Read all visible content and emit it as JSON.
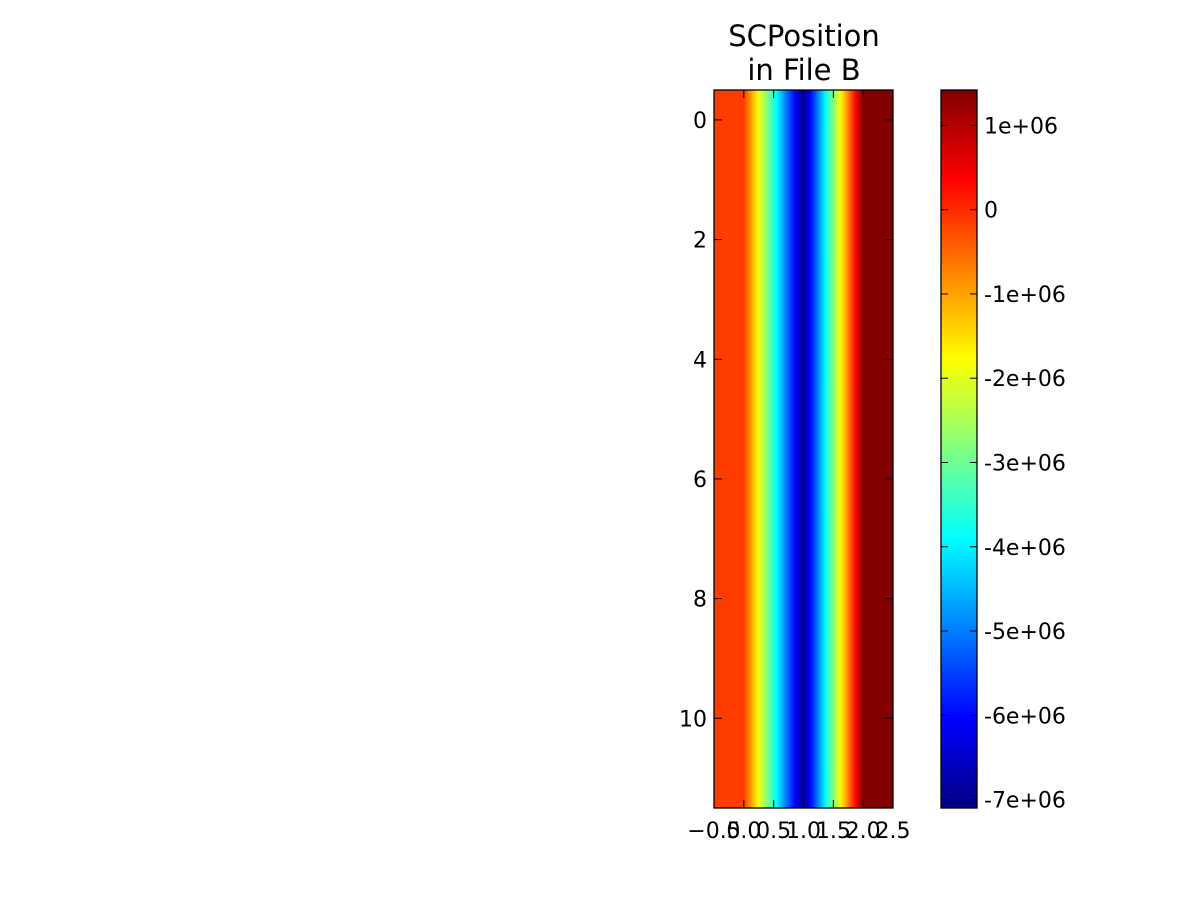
{
  "chart_data": {
    "type": "heatmap",
    "title": [
      "SCPosition",
      "in File B"
    ],
    "xlabel": "",
    "ylabel": "",
    "xlim": [
      -0.5,
      2.5
    ],
    "ylim": [
      11.5,
      -0.5
    ],
    "x_ticks": [
      {
        "value": -0.5,
        "label": "−0.5"
      },
      {
        "value": 0.0,
        "label": "0.0"
      },
      {
        "value": 0.5,
        "label": "0.5"
      },
      {
        "value": 1.0,
        "label": "1.0"
      },
      {
        "value": 1.5,
        "label": "1.5"
      },
      {
        "value": 2.0,
        "label": "2.0"
      },
      {
        "value": 2.5,
        "label": "2.5"
      }
    ],
    "y_ticks": [
      {
        "value": 0,
        "label": "0"
      },
      {
        "value": 2,
        "label": "2"
      },
      {
        "value": 4,
        "label": "4"
      },
      {
        "value": 6,
        "label": "6"
      },
      {
        "value": 8,
        "label": "8"
      },
      {
        "value": 10,
        "label": "10"
      }
    ],
    "rows": 12,
    "columns": [
      0,
      1,
      2
    ],
    "column_values": [
      -150000,
      -7000000,
      1400000
    ],
    "interpolation": "bilinear",
    "colormap": "jet",
    "colorbar": {
      "vmin": -7100000,
      "vmax": 1420000,
      "ticks": [
        {
          "value": 1000000,
          "label": "1e+06"
        },
        {
          "value": 0,
          "label": "0"
        },
        {
          "value": -1000000,
          "label": "-1e+06"
        },
        {
          "value": -2000000,
          "label": "-2e+06"
        },
        {
          "value": -3000000,
          "label": "-3e+06"
        },
        {
          "value": -4000000,
          "label": "-4e+06"
        },
        {
          "value": -5000000,
          "label": "-5e+06"
        },
        {
          "value": -6000000,
          "label": "-6e+06"
        },
        {
          "value": -7000000,
          "label": "-7e+06"
        }
      ]
    },
    "grid": false,
    "legend": "none"
  }
}
